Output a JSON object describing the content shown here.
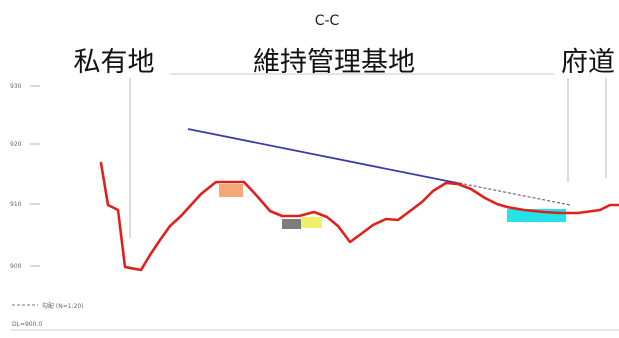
{
  "section": {
    "title": "C-C"
  },
  "areas": {
    "private_land": "私有地",
    "maintenance_base": "維持管理基地",
    "prefectural_road": "府道"
  },
  "elevation_labels": [
    "930",
    "920",
    "910",
    "900"
  ],
  "legend": {
    "line_label": "勾配 (N=1:20)",
    "datum_label": "DL=900.0"
  },
  "colors": {
    "ground_profile": "#e0201a",
    "slope_line": "#3a3aa8",
    "orange_patch": "#f5a77a",
    "gray_patch": "#7d7d7d",
    "yellow_patch": "#f0f06a",
    "cyan_patch": "#23e3e8"
  }
}
